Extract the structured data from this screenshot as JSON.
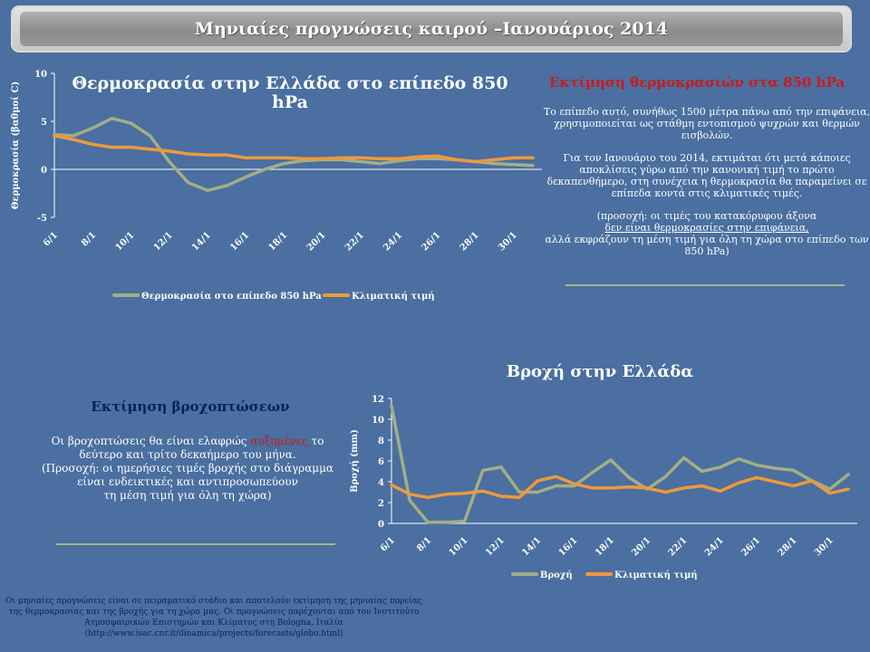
{
  "page_title": "Μηνιαίες προγνώσεις καιρού –Ιανουάριος 2014",
  "temp_panel": {
    "title": "Εκτίμηση θερμοκρασιών στα 850 hPa",
    "para1": "Το επίπεδο αυτό, συνήθως 1500 μέτρα πάνω από την επιφάνεια, χρησιμοποιείται ως στάθμη εντοπισμού ψυχρών και θερμών εισβολών.",
    "para2": "Για τον Ιανουάριο του 2014, εκτιμάται ότι μετά κάποιες αποκλίσεις γύρω από την κανονική τιμή το πρώτο δεκαπενθήμερο, στη συνέχεια η θερμοκρασία θα παραμείνει σε επίπεδα κοντά στις κλιματικές τιμές.",
    "para3_a": "(προσοχή: οι τιμές του κατακόρυφου άξονα",
    "para3_b": "δεν είναι θερμοκρασίες στην επιφάνεια,",
    "para3_c": "αλλά εκφράζουν τη μέση τιμή για όλη τη χώρα στο επίπεδο των 850 hPa)"
  },
  "rain_panel": {
    "title": "Εκτίμηση βροχοπτώσεων",
    "line1_a": "Οι βροχοπτώσεις θα είναι ελαφρώς ",
    "line1_red": "αυξημένες",
    "line1_b": " το δεύτερο και τρίτο δεκαήμερο του μήνα.",
    "line2": "(Προσοχή: οι ημερήσιες τιμές βροχής στο διάγραμμα είναι ενδεικτικές και αντιπροσωπεύουν",
    "line3": "τη μέση τιμή για όλη τη χώρα)"
  },
  "footer": "Οι μηνιαίες προγνώσεις είναι σε πειραματικό στάδιο και αποτελούν εκτίμηση της μηνιαίας πορείας της θερμοκρασίας και της βροχής για τη χώρα μας. Οι προγνώσεις παρέχονται από τον Ινστιτούτο Ατμοσφαιρικών Επιστημών και Κλίματος στη Bologna, Ιταλία (http://www.isac.cnr.it/dinamica/projects/forecasts/globo.html)",
  "colors": {
    "forecast": "#a3ae85",
    "climate": "#f0983c",
    "axis_text": "#ffffff",
    "title_red": "#cc1a1a",
    "dark_title": "#0d1f5a"
  },
  "chart_data": [
    {
      "type": "line",
      "title": "Θερμοκρασία στην Ελλάδα στο επίπεδο 850 hPa",
      "xlabel": "",
      "ylabel": "Θερμοκρασία (βαθμοί C)",
      "ylim": [
        -5,
        10
      ],
      "yticks": [
        -5,
        0,
        5,
        10
      ],
      "x": [
        "6/1",
        "7/1",
        "8/1",
        "9/1",
        "10/1",
        "11/1",
        "12/1",
        "13/1",
        "14/1",
        "15/1",
        "16/1",
        "17/1",
        "18/1",
        "19/1",
        "20/1",
        "21/1",
        "22/1",
        "23/1",
        "24/1",
        "25/1",
        "26/1",
        "27/1",
        "28/1",
        "29/1",
        "30/1",
        "31/1"
      ],
      "tick_labels": [
        "6/1",
        "8/1",
        "10/1",
        "12/1",
        "14/1",
        "16/1",
        "18/1",
        "20/1",
        "22/1",
        "24/1",
        "26/1",
        "28/1",
        "30/1"
      ],
      "series": [
        {
          "name": "Θερμοκρασία στο επίπεδο 850 hPa",
          "color": "#a3ae85",
          "values": [
            3.6,
            3.5,
            4.3,
            5.3,
            4.8,
            3.5,
            0.8,
            -1.4,
            -2.2,
            -1.7,
            -0.8,
            0.0,
            0.6,
            0.9,
            1.0,
            1.0,
            0.8,
            0.6,
            0.9,
            1.1,
            1.1,
            1.0,
            0.8,
            0.6,
            0.5,
            0.4
          ]
        },
        {
          "name": "Κλιματική τιμή",
          "color": "#f0983c",
          "values": [
            3.5,
            3.1,
            2.6,
            2.3,
            2.3,
            2.1,
            1.9,
            1.6,
            1.5,
            1.5,
            1.2,
            1.2,
            1.2,
            1.1,
            1.1,
            1.2,
            1.2,
            1.1,
            1.1,
            1.3,
            1.4,
            1.0,
            0.8,
            1.0,
            1.2,
            1.2
          ]
        }
      ]
    },
    {
      "type": "line",
      "title": "Βροχή στην Ελλάδα",
      "xlabel": "",
      "ylabel": "Βροχή (mm)",
      "ylim": [
        0,
        12
      ],
      "yticks": [
        0,
        2,
        4,
        6,
        8,
        10,
        12
      ],
      "x": [
        "6/1",
        "7/1",
        "8/1",
        "9/1",
        "10/1",
        "11/1",
        "12/1",
        "13/1",
        "14/1",
        "15/1",
        "16/1",
        "17/1",
        "18/1",
        "19/1",
        "20/1",
        "21/1",
        "22/1",
        "23/1",
        "24/1",
        "25/1",
        "26/1",
        "27/1",
        "28/1",
        "29/1",
        "30/1",
        "31/1"
      ],
      "tick_labels": [
        "6/1",
        "8/1",
        "10/1",
        "12/1",
        "14/1",
        "16/1",
        "18/1",
        "20/1",
        "22/1",
        "24/1",
        "26/1",
        "28/1",
        "30/1"
      ],
      "series": [
        {
          "name": "Βροχή",
          "color": "#a3ae85",
          "values": [
            11.3,
            2.2,
            0.1,
            0.1,
            0.2,
            5.1,
            5.4,
            3.0,
            3.0,
            3.6,
            3.6,
            4.9,
            6.1,
            4.4,
            3.3,
            4.5,
            6.3,
            5.0,
            5.4,
            6.2,
            5.6,
            5.3,
            5.1,
            4.1,
            3.3,
            4.7
          ]
        },
        {
          "name": "Κλιματική τιμή",
          "color": "#f0983c",
          "values": [
            3.7,
            2.8,
            2.5,
            2.8,
            2.9,
            3.1,
            2.6,
            2.5,
            4.1,
            4.5,
            3.8,
            3.4,
            3.4,
            3.5,
            3.4,
            3.0,
            3.4,
            3.6,
            3.1,
            3.9,
            4.4,
            4.0,
            3.6,
            4.1,
            2.9,
            3.3
          ]
        }
      ]
    }
  ]
}
